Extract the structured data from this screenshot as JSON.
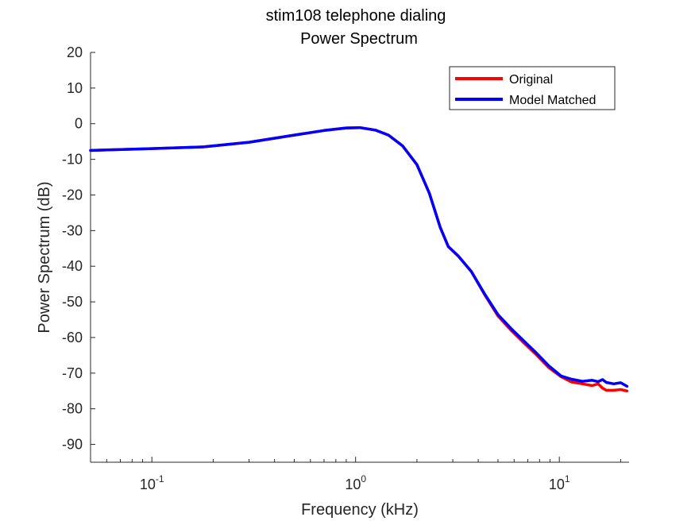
{
  "chart_data": {
    "type": "line",
    "title": "stim108 telephone dialing",
    "subtitle": "Power Spectrum",
    "xlabel": "Frequency (kHz)",
    "ylabel": "Power Spectrum (dB)",
    "xscale": "log",
    "xlim": [
      0.05,
      22
    ],
    "ylim": [
      -95,
      20
    ],
    "yticks": [
      20,
      10,
      0,
      -10,
      -20,
      -30,
      -40,
      -50,
      -60,
      -70,
      -80,
      -90
    ],
    "ytick_labels": [
      "20",
      "10",
      "0",
      "-10",
      "-20",
      "-30",
      "-40",
      "-50",
      "-60",
      "-70",
      "-80",
      "-90"
    ],
    "xticks": [
      {
        "value": 0.1,
        "base": "10",
        "exp": "-1"
      },
      {
        "value": 1,
        "base": "10",
        "exp": "0"
      },
      {
        "value": 10,
        "base": "10",
        "exp": "1"
      }
    ],
    "grid": false,
    "legend_position": "top-right",
    "series": [
      {
        "name": "Original",
        "color": "#ff0000",
        "x": [
          0.05,
          0.1,
          0.18,
          0.3,
          0.5,
          0.7,
          0.9,
          1.05,
          1.25,
          1.45,
          1.7,
          2.0,
          2.3,
          2.6,
          2.85,
          3.2,
          3.7,
          4.3,
          5.0,
          5.8,
          6.7,
          7.7,
          8.9,
          10.2,
          11.5,
          13.0,
          14.5,
          15.5,
          16.3,
          17.0,
          18.5,
          20.0,
          21.5
        ],
        "y": [
          -7.5,
          -7.0,
          -6.5,
          -5.2,
          -3.2,
          -1.9,
          -1.2,
          -1.1,
          -1.8,
          -3.2,
          -6.2,
          -11.5,
          -19.5,
          -29.0,
          -34.5,
          -37.2,
          -41.5,
          -48.0,
          -54.0,
          -58.0,
          -61.5,
          -64.8,
          -68.5,
          -71.0,
          -72.5,
          -73.0,
          -73.5,
          -73.0,
          -74.2,
          -74.8,
          -74.8,
          -74.6,
          -75.0
        ]
      },
      {
        "name": "Model Matched",
        "color": "#0000ff",
        "x": [
          0.05,
          0.1,
          0.18,
          0.3,
          0.5,
          0.7,
          0.9,
          1.05,
          1.25,
          1.45,
          1.7,
          2.0,
          2.3,
          2.6,
          2.85,
          3.2,
          3.7,
          4.3,
          5.0,
          5.8,
          6.7,
          7.7,
          8.9,
          10.2,
          11.5,
          13.0,
          14.5,
          15.5,
          16.3,
          17.0,
          18.5,
          20.0,
          21.5
        ],
        "y": [
          -7.5,
          -7.0,
          -6.5,
          -5.2,
          -3.2,
          -1.9,
          -1.2,
          -1.1,
          -1.8,
          -3.2,
          -6.2,
          -11.5,
          -19.5,
          -29.0,
          -34.5,
          -37.2,
          -41.5,
          -47.8,
          -53.6,
          -57.5,
          -61.0,
          -64.3,
          -68.0,
          -70.8,
          -71.7,
          -72.3,
          -72.0,
          -72.4,
          -71.8,
          -72.6,
          -73.0,
          -72.7,
          -73.7
        ]
      }
    ]
  }
}
